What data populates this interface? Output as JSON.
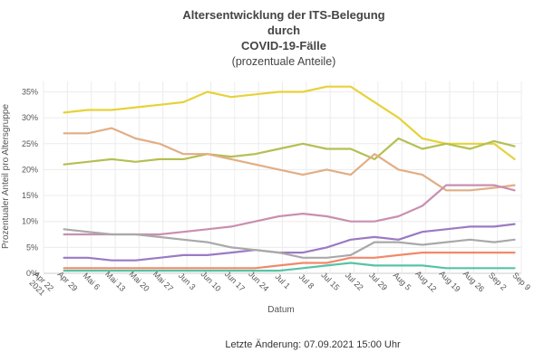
{
  "chart_data": {
    "type": "line",
    "title_lines": [
      "Altersentwicklung der ITS-Belegung",
      "durch",
      "COVID-19-Fälle"
    ],
    "subtitle": "(prozentuale Anteile)",
    "xlabel": "Datum",
    "ylabel": "Prozentualer Anteil pro Altersgruppe",
    "ylim": [
      0,
      37
    ],
    "y_ticks": [
      0,
      5,
      10,
      15,
      20,
      25,
      30,
      35
    ],
    "y_tick_labels": [
      "0%",
      "5%",
      "10%",
      "15%",
      "20%",
      "25%",
      "30%",
      "35%"
    ],
    "x_tick_labels": [
      "Apr 22\n2021",
      "Apr 29",
      "Mai 6",
      "Mai 13",
      "Mai 20",
      "Mai 27",
      "Jun 3",
      "Jun 10",
      "Jun 17",
      "Jun 24",
      "Jul 1",
      "Jul 8",
      "Jul 15",
      "Jul 22",
      "Jul 29",
      "Aug 5",
      "Aug 12",
      "Aug 19",
      "Aug 26",
      "Sep 2",
      "Sep 9"
    ],
    "x_start": "2021-04-22",
    "x_end": "2021-09-09",
    "dates": [
      "2021-04-28",
      "2021-05-05",
      "2021-05-12",
      "2021-05-19",
      "2021-05-26",
      "2021-06-02",
      "2021-06-09",
      "2021-06-16",
      "2021-06-23",
      "2021-06-30",
      "2021-07-07",
      "2021-07-14",
      "2021-07-21",
      "2021-07-28",
      "2021-08-04",
      "2021-08-11",
      "2021-08-18",
      "2021-08-25",
      "2021-09-01",
      "2021-09-07"
    ],
    "grid": true,
    "legend": "none",
    "series": [
      {
        "color": "#e6d23a",
        "values": [
          31,
          31.5,
          31.5,
          32,
          32.5,
          33,
          35,
          34,
          34.5,
          35,
          35,
          36,
          36,
          33,
          30,
          26,
          25,
          25,
          25,
          22
        ]
      },
      {
        "color": "#b5bf52",
        "values": [
          21,
          21.5,
          22,
          21.5,
          22,
          22,
          23,
          22.5,
          23,
          24,
          25,
          24,
          24,
          22,
          26,
          24,
          25,
          24,
          25.5,
          24.5
        ]
      },
      {
        "color": "#e1ae84",
        "values": [
          27,
          27,
          28,
          26,
          25,
          23,
          23,
          22,
          21,
          20,
          19,
          20,
          19,
          23,
          20,
          19,
          16,
          16,
          16.5,
          17
        ]
      },
      {
        "color": "#c98fb0",
        "values": [
          7.5,
          7.5,
          7.5,
          7.5,
          7.5,
          8,
          8.5,
          9,
          10,
          11,
          11.5,
          11,
          10,
          10,
          11,
          13,
          17,
          17,
          17,
          16
        ]
      },
      {
        "color": "#9b79c4",
        "values": [
          3,
          3,
          2.5,
          2.5,
          3,
          3.5,
          3.5,
          4,
          4.5,
          4,
          4,
          5,
          6.5,
          7,
          6.5,
          8,
          8.5,
          9,
          9,
          9.5
        ]
      },
      {
        "color": "#a9a9a9",
        "values": [
          8.5,
          8,
          7.5,
          7.5,
          7,
          6.5,
          6,
          5,
          4.5,
          4,
          3,
          3,
          3.5,
          6,
          6,
          5.5,
          6,
          6.5,
          6,
          6.5
        ]
      },
      {
        "color": "#f0896a",
        "values": [
          1,
          1,
          1,
          1,
          1,
          1,
          1,
          1,
          1,
          1.5,
          2,
          2,
          3,
          3,
          3.5,
          4,
          4,
          4,
          4,
          4
        ]
      },
      {
        "color": "#56c4a6",
        "values": [
          0.5,
          0.5,
          0.5,
          0.5,
          0.5,
          0.5,
          0.5,
          0.5,
          0.5,
          0.5,
          1,
          1.5,
          2,
          1.5,
          1.5,
          1.5,
          1,
          1,
          1,
          1
        ]
      }
    ]
  },
  "footer": "Letzte Änderung: 07.09.2021 15:00 Uhr"
}
